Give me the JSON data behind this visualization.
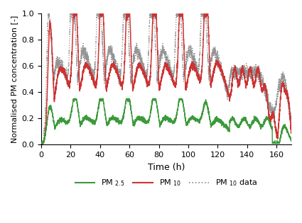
{
  "title": "",
  "xlabel": "Time (h)",
  "ylabel": "Normalised PM concentration [-]",
  "xlim": [
    0,
    170
  ],
  "ylim": [
    0,
    1.0
  ],
  "xticks": [
    0,
    20,
    40,
    60,
    80,
    100,
    120,
    140,
    160
  ],
  "yticks": [
    0,
    0.2,
    0.4,
    0.6,
    0.8,
    1.0
  ],
  "color_pm25": "#3a9a3a",
  "color_pm10": "#cc3333",
  "color_pm10data": "#888888",
  "lw_pm25": 1.0,
  "lw_pm10": 1.1,
  "lw_pm10data": 0.9,
  "figsize": [
    4.25,
    3.15
  ],
  "dpi": 100,
  "peak_times_10": [
    6,
    23,
    41,
    59,
    77,
    95,
    112
  ],
  "peak_vals_10": [
    0.92,
    0.92,
    0.92,
    0.92,
    0.92,
    0.92,
    0.92
  ],
  "notch_times": [
    13,
    31,
    49,
    67,
    85,
    103,
    120
  ],
  "notch_vals": [
    0.58,
    0.56,
    0.56,
    0.56,
    0.56,
    0.56,
    0.56
  ],
  "peak_times_25": [
    6,
    23,
    41,
    59,
    77,
    95,
    112
  ],
  "peak_vals_25": [
    0.29,
    0.29,
    0.29,
    0.29,
    0.29,
    0.29,
    0.22
  ],
  "notch_times_25": [
    13,
    31,
    49,
    67,
    85,
    103,
    120
  ],
  "notch_vals_25": [
    0.19,
    0.19,
    0.19,
    0.19,
    0.19,
    0.19,
    0.17
  ]
}
